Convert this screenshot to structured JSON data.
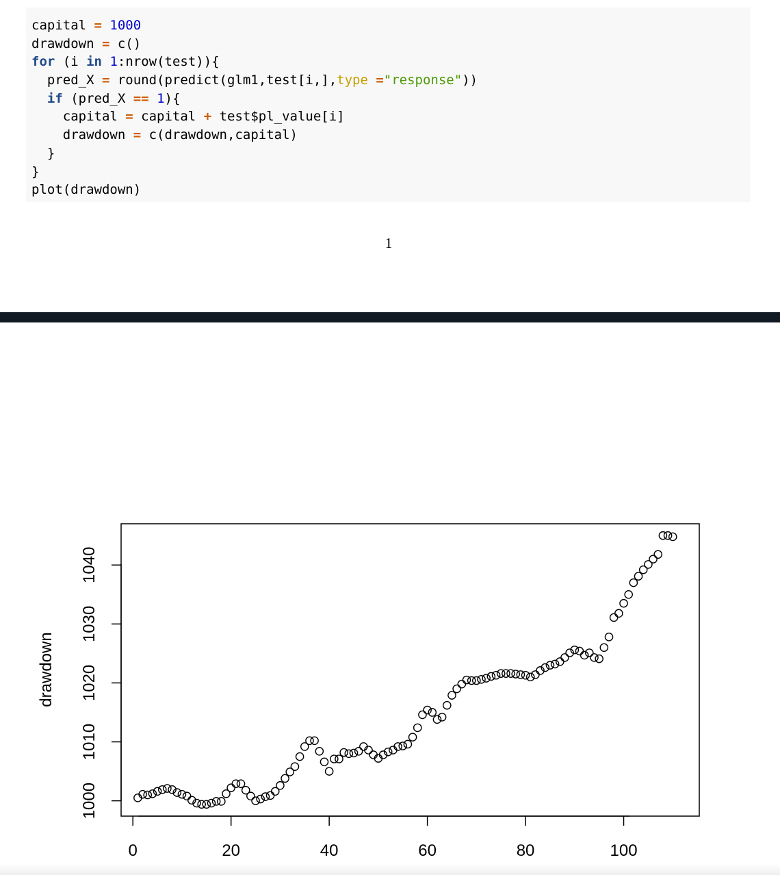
{
  "code": {
    "lines": [
      [
        [
          "capital ",
          ""
        ],
        [
          "=",
          "op"
        ],
        [
          " ",
          ""
        ],
        [
          "1000",
          "num"
        ]
      ],
      [
        [
          "drawdown ",
          ""
        ],
        [
          "=",
          "op"
        ],
        [
          " c()",
          ""
        ]
      ],
      [
        [
          "for",
          "kw"
        ],
        [
          " (i ",
          ""
        ],
        [
          "in",
          "kw"
        ],
        [
          " ",
          ""
        ],
        [
          "1",
          "num"
        ],
        [
          ":nrow(test)){",
          ""
        ]
      ],
      [
        [
          "  pred_X ",
          ""
        ],
        [
          "=",
          "op"
        ],
        [
          " round(predict(glm1,test[i,],",
          ""
        ],
        [
          "type",
          "arg"
        ],
        [
          " =",
          "op"
        ],
        [
          "\"response\"",
          "str"
        ],
        [
          "))",
          ""
        ]
      ],
      [
        [
          "  ",
          ""
        ],
        [
          "if",
          "kw"
        ],
        [
          " (pred_X ",
          ""
        ],
        [
          "==",
          "op"
        ],
        [
          " ",
          ""
        ],
        [
          "1",
          "num"
        ],
        [
          "){",
          ""
        ]
      ],
      [
        [
          "    capital ",
          ""
        ],
        [
          "=",
          "op"
        ],
        [
          " capital ",
          ""
        ],
        [
          "+",
          "op"
        ],
        [
          " test$pl_value[i]",
          ""
        ]
      ],
      [
        [
          "    drawdown ",
          ""
        ],
        [
          "=",
          "op"
        ],
        [
          " c(drawdown,capital)",
          ""
        ]
      ],
      [
        [
          "  }",
          ""
        ]
      ],
      [
        [
          "}",
          ""
        ]
      ],
      [
        [
          "plot(drawdown)",
          ""
        ]
      ]
    ]
  },
  "page_number": "1",
  "chart_data": {
    "type": "scatter",
    "title": "",
    "xlabel": "",
    "ylabel": "drawdown",
    "xlim": [
      -2.4,
      115.4
    ],
    "ylim": [
      997.4,
      1047
    ],
    "xticks": [
      0,
      20,
      40,
      60,
      80,
      100
    ],
    "xtick_labels": [
      "0",
      "20",
      "40",
      "60",
      "80",
      "100"
    ],
    "yticks": [
      1000,
      1010,
      1020,
      1030,
      1040
    ],
    "ytick_labels": [
      "1000",
      "1010",
      "1020",
      "1030",
      "1040"
    ],
    "grid": false,
    "marker": "open-circle",
    "x": [
      1,
      2,
      3,
      4,
      5,
      6,
      7,
      8,
      9,
      10,
      11,
      12,
      13,
      14,
      15,
      16,
      17,
      18,
      19,
      20,
      21,
      22,
      23,
      24,
      25,
      26,
      27,
      28,
      29,
      30,
      31,
      32,
      33,
      34,
      35,
      36,
      37,
      38,
      39,
      40,
      41,
      42,
      43,
      44,
      45,
      46,
      47,
      48,
      49,
      50,
      51,
      52,
      53,
      54,
      55,
      56,
      57,
      58,
      59,
      60,
      61,
      62,
      63,
      64,
      65,
      66,
      67,
      68,
      69,
      70,
      71,
      72,
      73,
      74,
      75,
      76,
      77,
      78,
      79,
      80,
      81,
      82,
      83,
      84,
      85,
      86,
      87,
      88,
      89,
      90,
      91,
      92,
      93,
      94,
      95,
      96,
      97,
      98,
      99,
      100,
      101,
      102,
      103,
      104,
      105,
      106,
      107,
      108,
      109,
      110
    ],
    "y": [
      1000.5,
      1001.1,
      1001.0,
      1001.2,
      1001.6,
      1001.9,
      1002.1,
      1001.9,
      1001.4,
      1001.1,
      1000.8,
      1000.1,
      999.6,
      999.4,
      999.4,
      999.6,
      999.9,
      999.9,
      1001.2,
      1002.2,
      1002.9,
      1002.9,
      1001.8,
      1000.8,
      1000.0,
      1000.3,
      1000.7,
      1000.9,
      1001.6,
      1002.6,
      1003.8,
      1004.9,
      1005.8,
      1007.5,
      1009.2,
      1010.2,
      1010.2,
      1008.4,
      1006.6,
      1005.0,
      1007.1,
      1007.1,
      1008.2,
      1008.0,
      1008.1,
      1008.4,
      1009.2,
      1008.6,
      1007.8,
      1007.2,
      1007.8,
      1008.3,
      1008.6,
      1009.2,
      1009.3,
      1009.6,
      1010.8,
      1012.4,
      1014.6,
      1015.4,
      1015.0,
      1013.8,
      1014.2,
      1016.2,
      1017.9,
      1019.0,
      1019.8,
      1020.5,
      1020.4,
      1020.4,
      1020.6,
      1020.8,
      1021.1,
      1021.3,
      1021.6,
      1021.6,
      1021.6,
      1021.5,
      1021.4,
      1021.3,
      1021.0,
      1021.4,
      1022.1,
      1022.6,
      1023.0,
      1023.2,
      1023.6,
      1024.3,
      1025.1,
      1025.6,
      1025.4,
      1024.7,
      1025.1,
      1024.3,
      1024.1,
      1026.0,
      1027.8,
      1031.1,
      1031.8,
      1033.5,
      1035.0,
      1037.0,
      1038.1,
      1039.2,
      1040.1,
      1041.0,
      1041.8,
      1045.0,
      1045.0,
      1044.8
    ]
  }
}
